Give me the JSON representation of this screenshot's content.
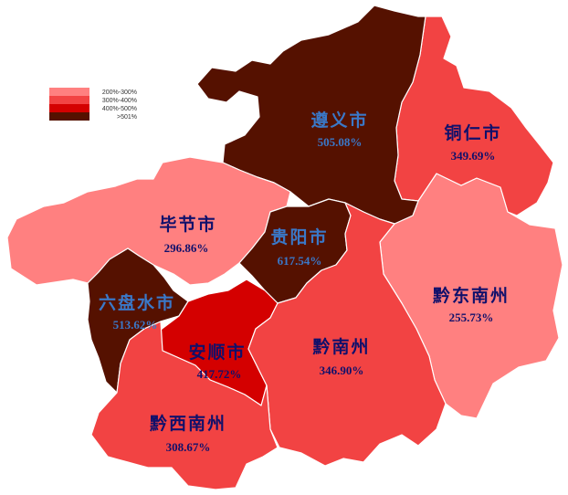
{
  "legend": {
    "items": [
      {
        "label": "200%-300%",
        "color": "#ff8080"
      },
      {
        "label": "300%-400%",
        "color": "#f24343"
      },
      {
        "label": "400%-500%",
        "color": "#d40000"
      },
      {
        "label": ">501%",
        "color": "#551100"
      }
    ]
  },
  "colors": {
    "dark_label": "#10106b",
    "light_label": "#3a78c8",
    "border": "#ffffff"
  },
  "regions": {
    "zunyi": {
      "name": "遵义市",
      "value": "505.08%",
      "color": "#551100"
    },
    "tongren": {
      "name": "铜仁市",
      "value": "349.69%",
      "color": "#f24343"
    },
    "bijie": {
      "name": "毕节市",
      "value": "296.86%",
      "color": "#ff8080"
    },
    "guiyang": {
      "name": "贵阳市",
      "value": "617.54%",
      "color": "#551100"
    },
    "qiandongnan": {
      "name": "黔东南州",
      "value": "255.73%",
      "color": "#ff8080"
    },
    "liupanshui": {
      "name": "六盘水市",
      "value": "513.62%",
      "color": "#551100"
    },
    "anshun": {
      "name": "安顺市",
      "value": "417.72%",
      "color": "#d40000"
    },
    "qiannan": {
      "name": "黔南州",
      "value": "346.90%",
      "color": "#f24343"
    },
    "qianxinan": {
      "name": "黔西南州",
      "value": "308.67%",
      "color": "#f24343"
    }
  }
}
